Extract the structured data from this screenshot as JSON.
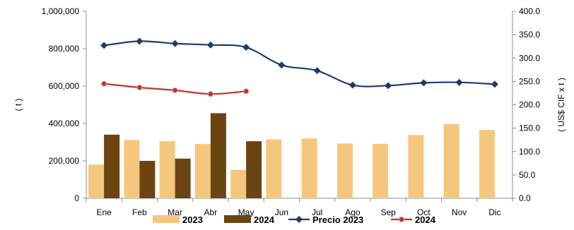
{
  "chart_data": {
    "type": "bar",
    "categories": [
      "Ene",
      "Feb",
      "Mar",
      "Abr",
      "May",
      "Jun",
      "Jul",
      "Ago",
      "Sep",
      "Oct",
      "Nov",
      "Dic"
    ],
    "series": [
      {
        "name": "2023",
        "kind": "bar",
        "axis": "left",
        "color": "#F5C77E",
        "values": [
          180000,
          312000,
          305000,
          290000,
          152000,
          315000,
          320000,
          293000,
          291000,
          338000,
          397000,
          365000
        ]
      },
      {
        "name": "2024",
        "kind": "bar",
        "axis": "left",
        "color": "#6B4411",
        "values": [
          340000,
          200000,
          212000,
          455000,
          305000,
          null,
          null,
          null,
          null,
          null,
          null,
          null
        ]
      },
      {
        "name": "Precio 2023",
        "kind": "line",
        "axis": "right",
        "color": "#1F3A6E",
        "marker": "diamond",
        "values": [
          327,
          336,
          331,
          328,
          323,
          285,
          273,
          242,
          241,
          247,
          248,
          244
        ]
      },
      {
        "name": "2024",
        "kind": "line",
        "axis": "right",
        "color": "#C0342E",
        "marker": "circle",
        "values": [
          245,
          237,
          231,
          223,
          229,
          null,
          null,
          null,
          null,
          null,
          null,
          null
        ]
      }
    ],
    "ylabel": "( t )",
    "y2label": "( US$ CIF x t )",
    "ylim": [
      0,
      1000000
    ],
    "y2lim": [
      0,
      400
    ],
    "yticks": [
      "0",
      "200,000",
      "400,000",
      "600,000",
      "800,000",
      "1,000,000"
    ],
    "y2ticks": [
      "0.0",
      "50.0",
      "100.0",
      "150.0",
      "200.0",
      "250.0",
      "300.0",
      "350.0",
      "400.0"
    ],
    "grid": false,
    "legend_position": "bottom"
  }
}
